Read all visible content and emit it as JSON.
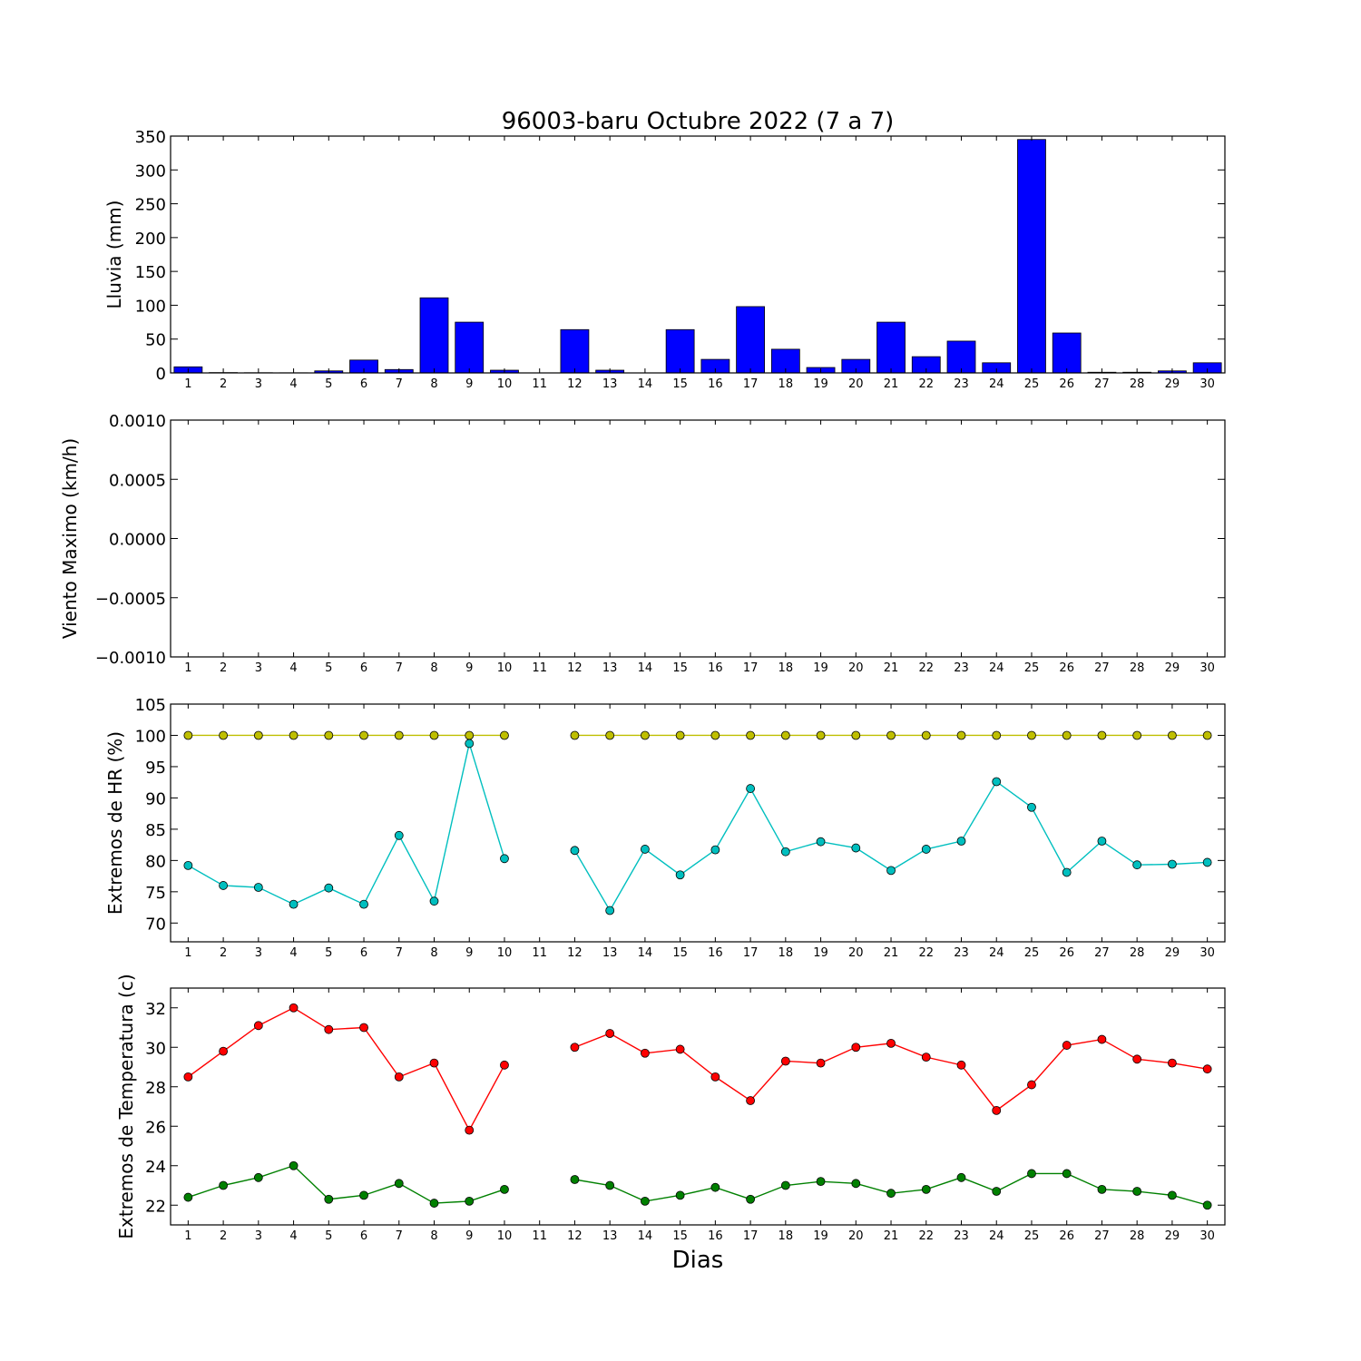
{
  "chart_data": [
    {
      "type": "bar",
      "title": "96003-baru Octubre 2022  (7 a 7)",
      "ylabel": "Lluvia (mm)",
      "xlabel": "",
      "categories": [
        "1",
        "2",
        "3",
        "4",
        "5",
        "6",
        "7",
        "8",
        "9",
        "10",
        "11",
        "12",
        "13",
        "14",
        "15",
        "16",
        "17",
        "18",
        "19",
        "20",
        "21",
        "22",
        "23",
        "24",
        "25",
        "26",
        "27",
        "28",
        "29",
        "30"
      ],
      "values": [
        9,
        0.5,
        0.3,
        0.2,
        3,
        19,
        5,
        111,
        75,
        4,
        0,
        64,
        4,
        0,
        64,
        20,
        98,
        35,
        8,
        20,
        75,
        24,
        47,
        15,
        345,
        59,
        1,
        1,
        3,
        15
      ],
      "ylim": [
        0,
        350
      ],
      "yticks": [
        "0",
        "50",
        "100",
        "150",
        "200",
        "250",
        "300",
        "350"
      ],
      "color": "#0000ff",
      "grid": false
    },
    {
      "type": "line",
      "ylabel": "Viento Maximo (km/h)",
      "xlabel": "",
      "categories": [
        "1",
        "2",
        "3",
        "4",
        "5",
        "6",
        "7",
        "8",
        "9",
        "10",
        "11",
        "12",
        "13",
        "14",
        "15",
        "16",
        "17",
        "18",
        "19",
        "20",
        "21",
        "22",
        "23",
        "24",
        "25",
        "26",
        "27",
        "28",
        "29",
        "30"
      ],
      "series": [],
      "ylim": [
        -0.001,
        0.001
      ],
      "yticks": [
        "−0.0010",
        "−0.0005",
        "0.0000",
        "0.0005",
        "0.0010"
      ],
      "grid": false
    },
    {
      "type": "line",
      "ylabel": "Extremos de HR (%)",
      "xlabel": "",
      "categories": [
        "1",
        "2",
        "3",
        "4",
        "5",
        "6",
        "7",
        "8",
        "9",
        "10",
        "11",
        "12",
        "13",
        "14",
        "15",
        "16",
        "17",
        "18",
        "19",
        "20",
        "21",
        "22",
        "23",
        "24",
        "25",
        "26",
        "27",
        "28",
        "29",
        "30"
      ],
      "series": [
        {
          "color": "#bfbf00",
          "values": [
            100,
            100,
            100,
            100,
            100,
            100,
            100,
            100,
            100,
            100,
            null,
            100,
            100,
            100,
            100,
            100,
            100,
            100,
            100,
            100,
            100,
            100,
            100,
            100,
            100,
            100,
            100,
            100,
            100,
            100
          ]
        },
        {
          "color": "#00bfbf",
          "values": [
            79.2,
            76,
            75.7,
            73,
            75.6,
            73,
            84,
            73.5,
            98.7,
            80.3,
            null,
            81.6,
            72,
            81.8,
            77.7,
            81.7,
            91.5,
            81.4,
            83,
            82,
            78.4,
            81.8,
            83.1,
            92.6,
            88.5,
            78.1,
            83.1,
            79.3,
            79.4,
            79.7
          ]
        }
      ],
      "ylim": [
        67,
        105
      ],
      "yticks": [
        "70",
        "75",
        "80",
        "85",
        "90",
        "95",
        "100",
        "105"
      ],
      "grid": false
    },
    {
      "type": "line",
      "ylabel": "Extremos de Temperatura (c)",
      "xlabel": "Dias",
      "categories": [
        "1",
        "2",
        "3",
        "4",
        "5",
        "6",
        "7",
        "8",
        "9",
        "10",
        "11",
        "12",
        "13",
        "14",
        "15",
        "16",
        "17",
        "18",
        "19",
        "20",
        "21",
        "22",
        "23",
        "24",
        "25",
        "26",
        "27",
        "28",
        "29",
        "30"
      ],
      "series": [
        {
          "color": "#ff0000",
          "values": [
            28.5,
            29.8,
            31.1,
            32,
            30.9,
            31,
            28.5,
            29.2,
            25.8,
            29.1,
            null,
            30,
            30.7,
            29.7,
            29.9,
            28.5,
            27.3,
            29.3,
            29.2,
            30,
            30.2,
            29.5,
            29.1,
            26.8,
            28.1,
            30.1,
            30.4,
            29.4,
            29.2,
            28.9
          ]
        },
        {
          "color": "#008000",
          "values": [
            22.4,
            23,
            23.4,
            24,
            22.3,
            22.5,
            23.1,
            22.1,
            22.2,
            22.8,
            null,
            23.3,
            23,
            22.2,
            22.5,
            22.9,
            22.3,
            23,
            23.2,
            23.1,
            22.6,
            22.8,
            23.4,
            22.7,
            23.6,
            23.6,
            22.8,
            22.7,
            22.5,
            22
          ]
        }
      ],
      "ylim": [
        21,
        33
      ],
      "yticks": [
        "22",
        "24",
        "26",
        "28",
        "30",
        "32"
      ],
      "grid": false
    }
  ]
}
